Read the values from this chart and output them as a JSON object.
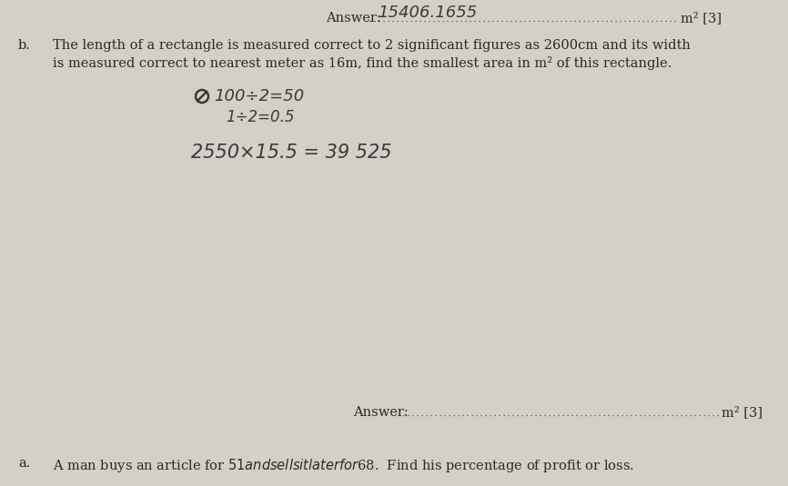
{
  "bg_color": "#d4cfc7",
  "text_color": "#2a2a2a",
  "fig_width": 8.66,
  "fig_height": 5.35,
  "dpi": 100,
  "b_label": "b.",
  "question_line1": "The length of a rectangle is measured correct to 2 significant figures as 2600cm and its width",
  "question_line2": "is measured correct to nearest meter as 16m, find the smallest area in m² of this rectangle.",
  "answer_bottom_label": "Answer: ",
  "answer_bottom_suffix": "m² [3]",
  "a_label": "a.",
  "last_line": "A man buys an article for $51 and sells it later for $68.  Find his percentage of profit or loss."
}
